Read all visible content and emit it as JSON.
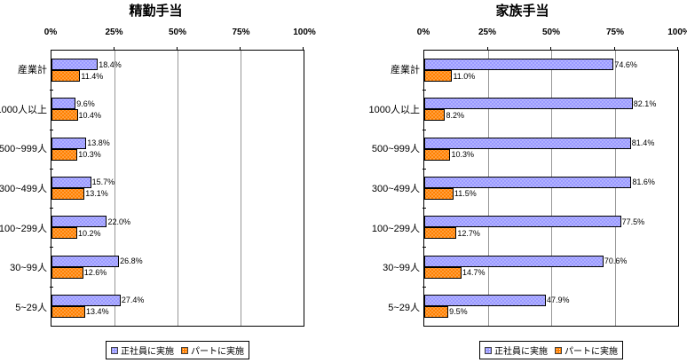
{
  "page": {
    "background": "#FFFFFF"
  },
  "colors": {
    "series_fulltime": "#9999FF",
    "series_parttime": "#FF8000",
    "gridline": "#969696",
    "plot_border": "#000000"
  },
  "chart_data": [
    {
      "type": "bar",
      "orientation": "horizontal",
      "title": "精勤手当",
      "categories": [
        "産業計",
        "1000人以上",
        "500~999人",
        "300~499人",
        "100~299人",
        "30~99人",
        "5~29人"
      ],
      "series": [
        {
          "name": "正社員に実施",
          "color": "#9999FF",
          "values": [
            18.4,
            9.6,
            13.8,
            15.7,
            22.0,
            26.8,
            27.4
          ]
        },
        {
          "name": "パートに実施",
          "color": "#FF8000",
          "values": [
            11.4,
            10.4,
            10.3,
            13.1,
            10.2,
            12.6,
            13.4
          ]
        }
      ],
      "xlim": [
        0,
        100
      ],
      "xticks": [
        "0%",
        "25%",
        "50%",
        "75%",
        "100%"
      ],
      "grid": true,
      "legend_position": "bottom",
      "value_label_suffix": "%"
    },
    {
      "type": "bar",
      "orientation": "horizontal",
      "title": "家族手当",
      "categories": [
        "産業計",
        "1000人以上",
        "500~999人",
        "300~499人",
        "100~299人",
        "30~99人",
        "5~29人"
      ],
      "series": [
        {
          "name": "正社員に実施",
          "color": "#9999FF",
          "values": [
            74.6,
            82.1,
            81.4,
            81.6,
            77.5,
            70.6,
            47.9
          ]
        },
        {
          "name": "パートに実施",
          "color": "#FF8000",
          "values": [
            11.0,
            8.2,
            10.3,
            11.5,
            12.7,
            14.7,
            9.5
          ]
        }
      ],
      "xlim": [
        0,
        100
      ],
      "xticks": [
        "0%",
        "25%",
        "50%",
        "75%",
        "100%"
      ],
      "grid": true,
      "legend_position": "bottom",
      "value_label_suffix": "%"
    }
  ]
}
